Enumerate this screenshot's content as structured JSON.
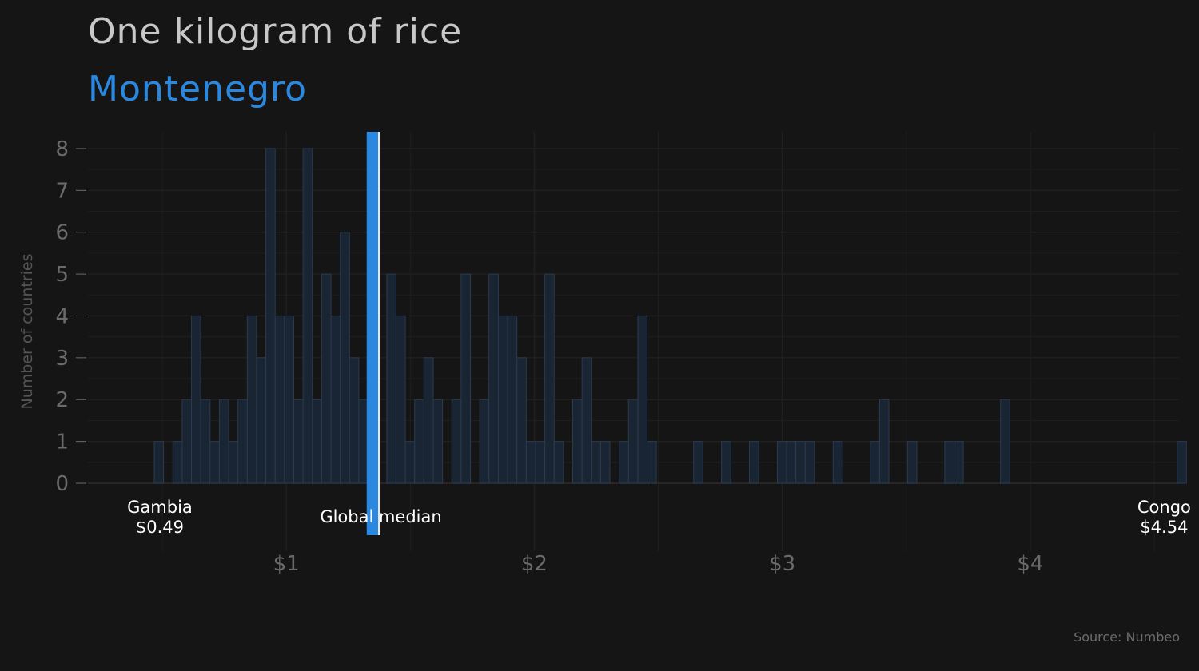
{
  "title": "One kilogram of rice",
  "subtitle": "Montenegro",
  "source": "Source: Numbeo",
  "colors": {
    "background": "#151515",
    "accent": "#2a88e0",
    "bars_fill": "#1a2533",
    "bars_stroke": "#2a3a4f",
    "grid": "#202020",
    "axis_text": "#6a6a6a"
  },
  "chart_data": {
    "type": "bar",
    "xlabel": "",
    "ylabel": "Number of countries",
    "xlim": [
      0.2,
      4.6
    ],
    "ylim": [
      0,
      8.4
    ],
    "x_ticks": [
      1,
      2,
      3,
      4
    ],
    "x_tick_labels": [
      "$1",
      "$2",
      "$3",
      "$4"
    ],
    "y_ticks": [
      0,
      1,
      2,
      3,
      4,
      5,
      6,
      7,
      8
    ],
    "y_tick_labels": [
      "0",
      "1",
      "2",
      "3",
      "4",
      "5",
      "6",
      "7",
      "8"
    ],
    "grid": true,
    "bin_width": 0.0375,
    "bin_start": 0.4675,
    "counts": [
      1,
      0,
      1,
      2,
      4,
      2,
      1,
      2,
      1,
      2,
      4,
      3,
      8,
      4,
      4,
      2,
      8,
      2,
      5,
      4,
      6,
      3,
      2,
      0,
      0,
      5,
      4,
      1,
      2,
      3,
      2,
      0,
      2,
      5,
      0,
      2,
      5,
      4,
      4,
      3,
      1,
      1,
      5,
      1,
      0,
      2,
      3,
      1,
      1,
      0,
      1,
      2,
      4,
      1,
      0,
      0,
      0,
      0,
      1,
      0,
      0,
      1,
      0,
      0,
      1,
      0,
      0,
      1,
      1,
      1,
      1,
      0,
      0,
      1,
      0,
      0,
      0,
      1,
      2,
      0,
      0,
      1,
      0,
      0,
      0,
      1,
      1,
      0,
      0,
      0,
      0,
      2,
      0,
      0,
      0,
      0,
      0,
      0,
      0,
      0,
      0,
      0,
      0,
      0,
      0,
      0,
      0,
      0,
      0,
      0,
      1
    ],
    "highlight": {
      "label": "Montenegro",
      "value": 1.35
    },
    "median": {
      "label": "Global median",
      "value": 1.375
    },
    "min": {
      "country": "Gambia",
      "value_label": "$0.49",
      "value": 0.49
    },
    "max": {
      "country": "Congo",
      "value_label": "$4.54",
      "value": 4.54
    }
  }
}
